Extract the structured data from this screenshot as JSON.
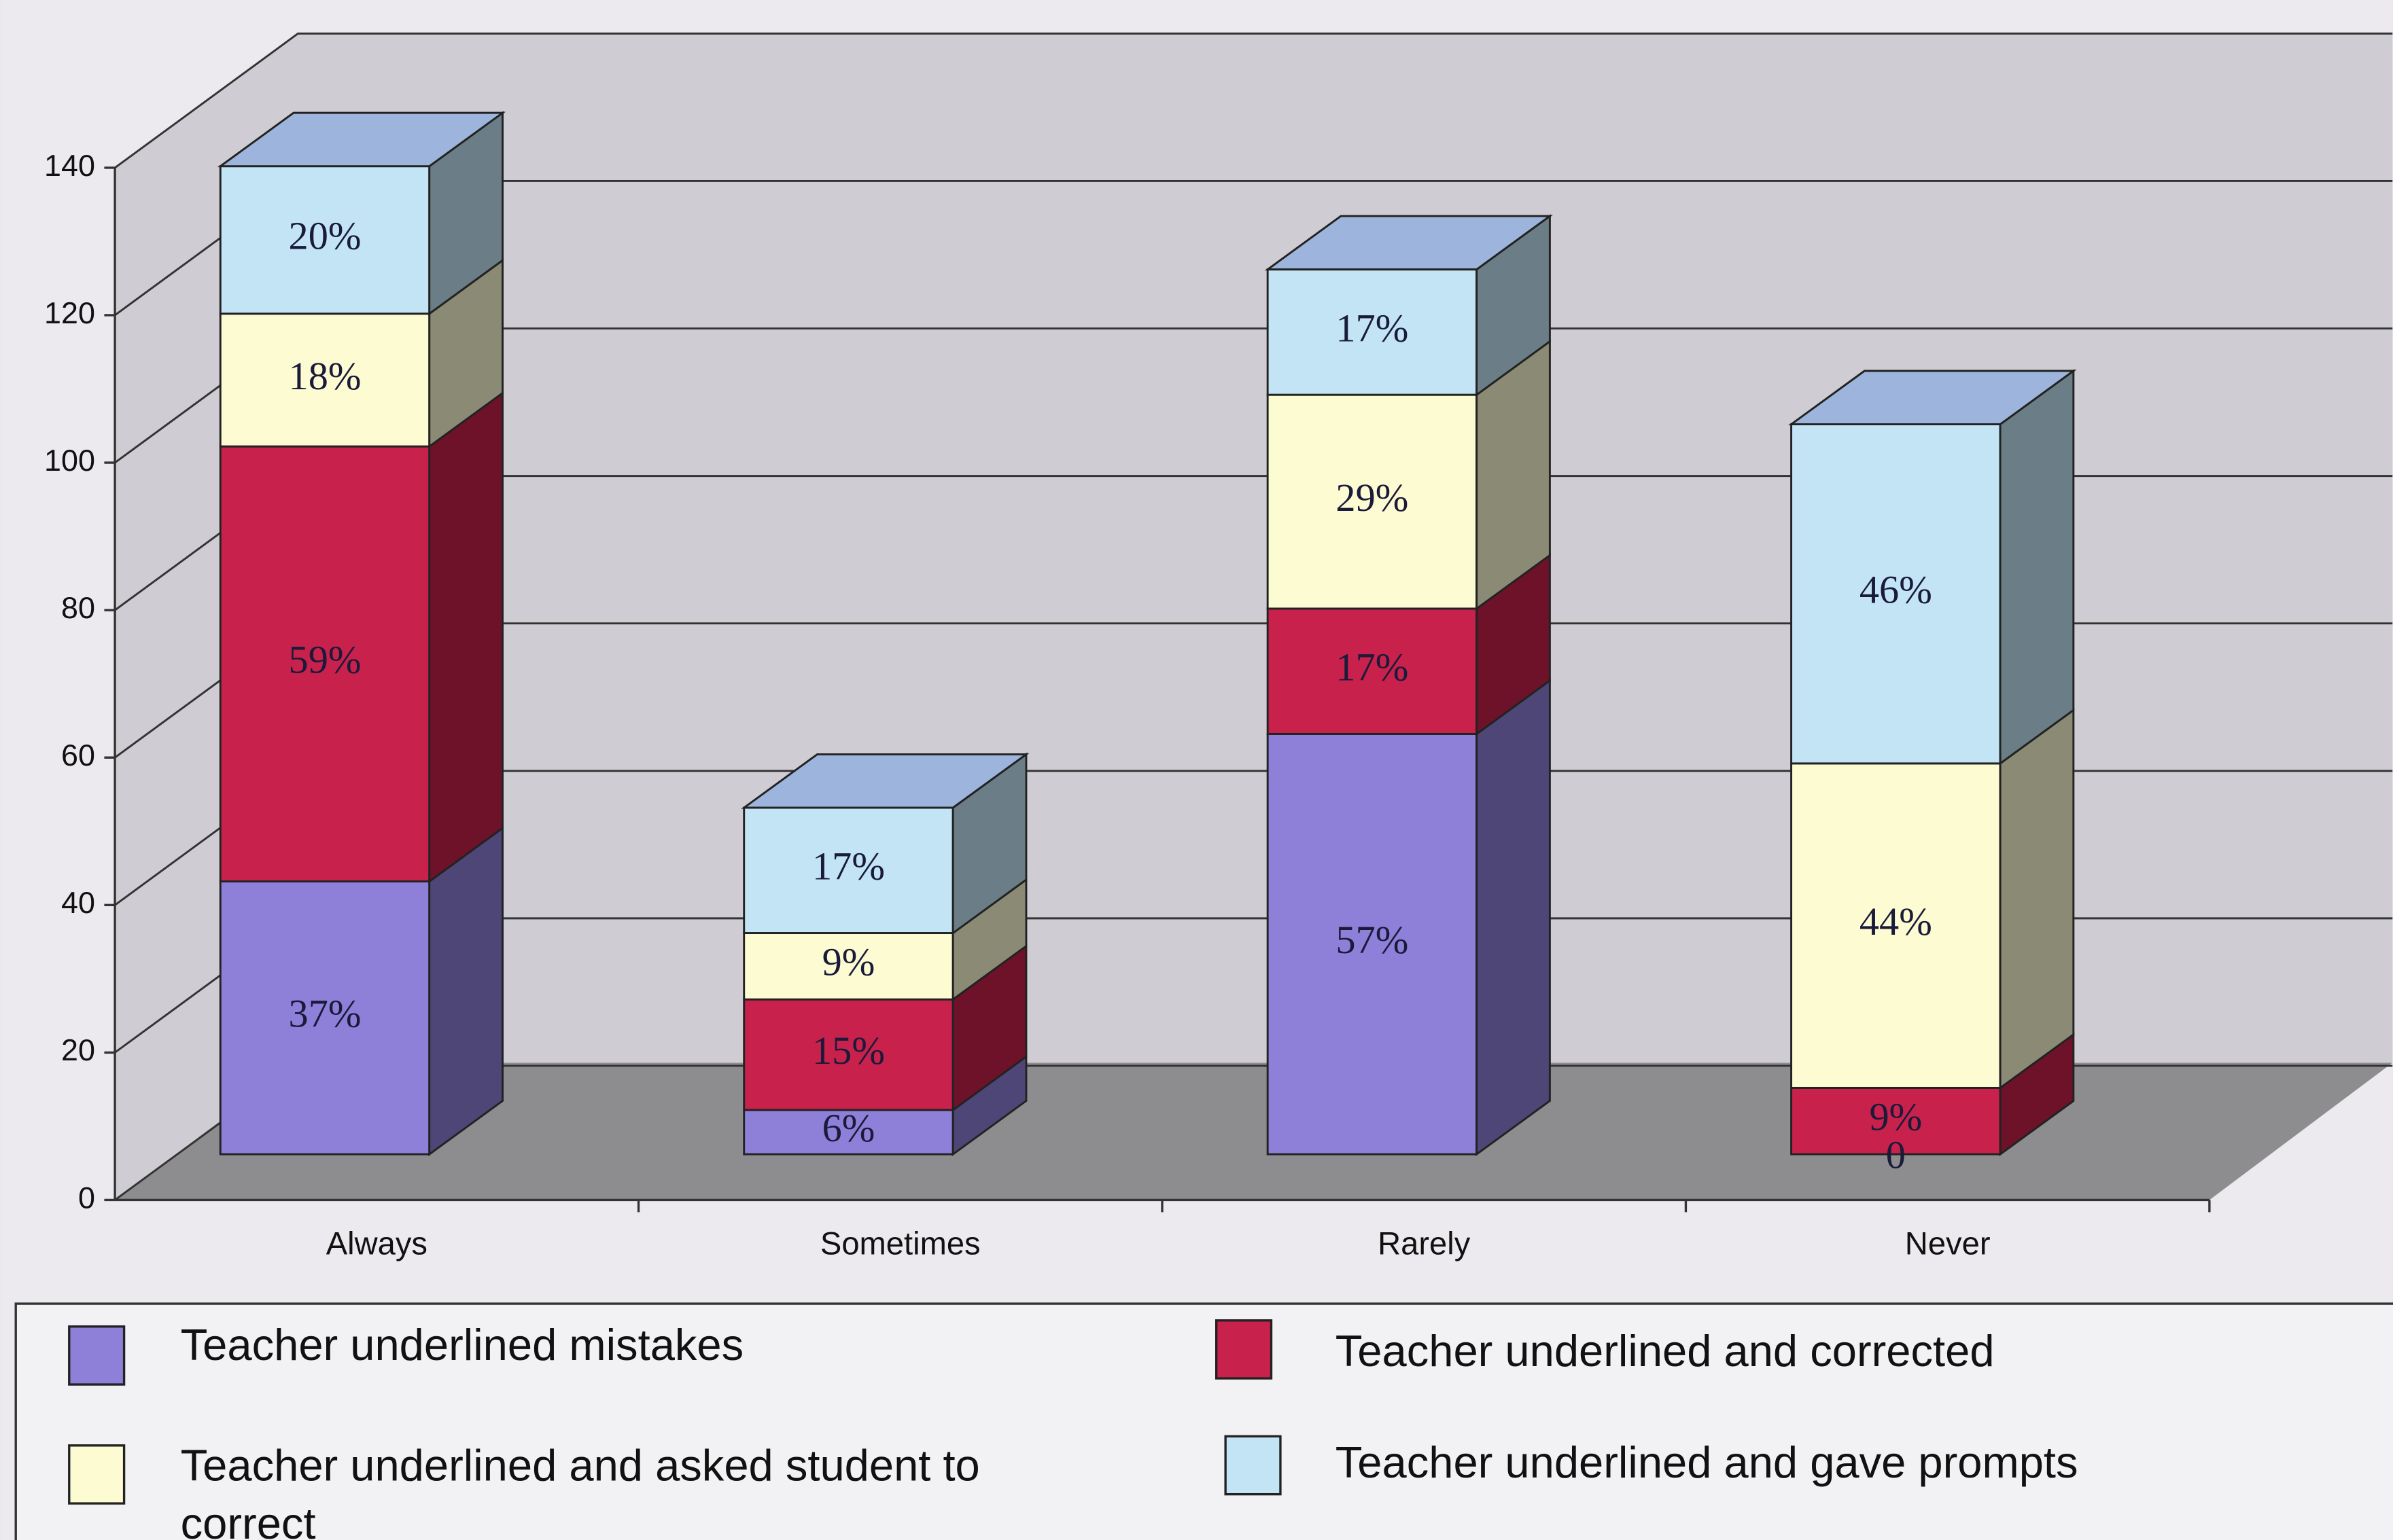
{
  "chart_data": {
    "type": "bar3d_stacked",
    "categories": [
      "Always",
      "Sometimes",
      "Rarely",
      "Never"
    ],
    "series": [
      {
        "name": "Teacher underlined mistakes",
        "color": "#8e80d8",
        "values": [
          37,
          6,
          57,
          0
        ],
        "value_labels": [
          "37%",
          "6%",
          "57%",
          "0"
        ]
      },
      {
        "name": "Teacher underlined and corrected",
        "color": "#c8214c",
        "values": [
          59,
          15,
          17,
          9
        ],
        "value_labels": [
          "59%",
          "15%",
          "17%",
          "9%"
        ]
      },
      {
        "name": "Teacher underlined and asked student to correct",
        "color": "#fcfbd2",
        "values": [
          18,
          9,
          29,
          44
        ],
        "value_labels": [
          "18%",
          "9%",
          "29%",
          "44%"
        ]
      },
      {
        "name": "Teacher underlined and gave prompts",
        "color": "#c2e4f4",
        "values": [
          20,
          17,
          17,
          46
        ],
        "value_labels": [
          "20%",
          "17%",
          "17%",
          "46%"
        ]
      }
    ],
    "ylim": [
      0,
      140
    ],
    "yticks": [
      0,
      20,
      40,
      60,
      80,
      100,
      120,
      140
    ],
    "grid": true
  }
}
